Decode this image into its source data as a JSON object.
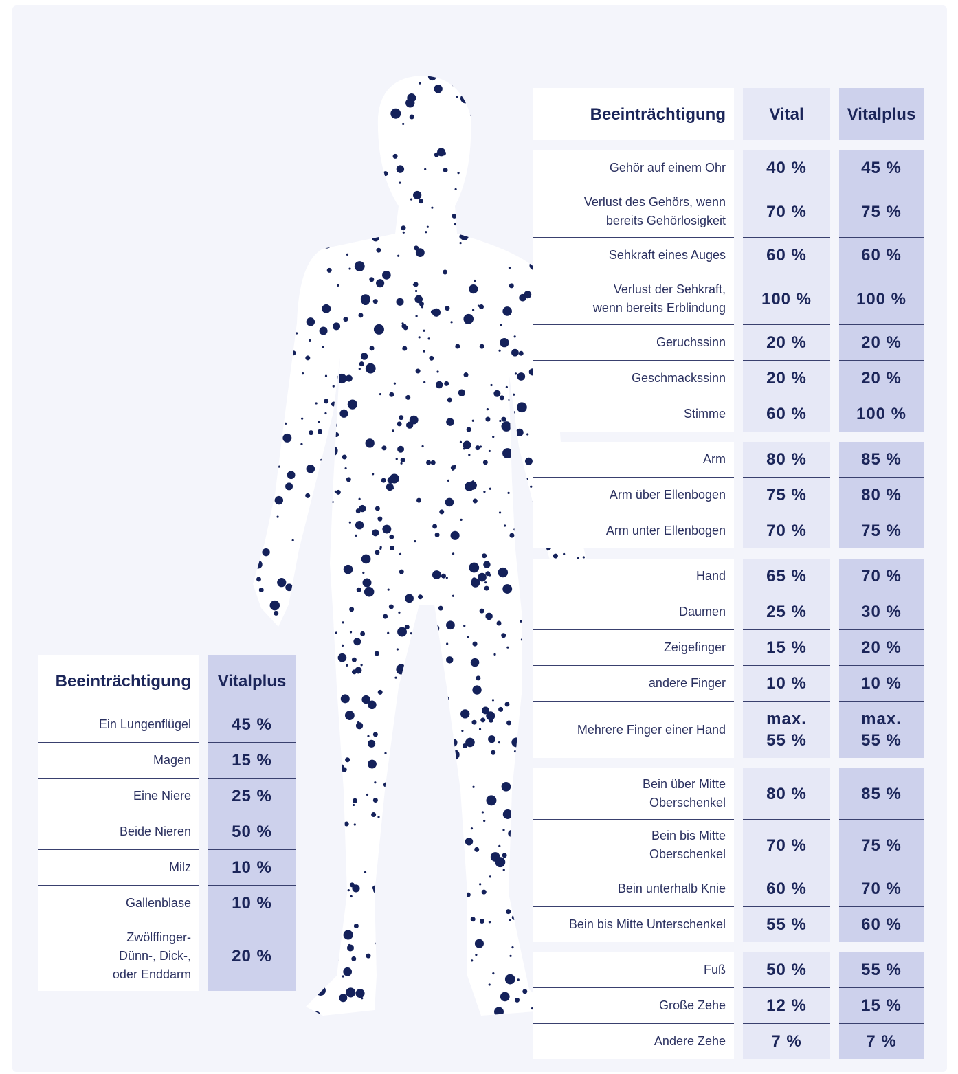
{
  "right_table": {
    "headers": [
      "Beeinträchtigung",
      "Vital",
      "Vitalplus"
    ],
    "groups": [
      [
        [
          "Gehör auf einem Ohr",
          "40 %",
          "45 %"
        ],
        [
          "Verlust des Gehörs, wenn\nbereits Gehörlosigkeit",
          "70 %",
          "75 %"
        ],
        [
          "Sehkraft eines Auges",
          "60 %",
          "60 %"
        ],
        [
          "Verlust der Sehkraft,\nwenn bereits Erblindung",
          "100 %",
          "100 %"
        ],
        [
          "Geruchssinn",
          "20 %",
          "20 %"
        ],
        [
          "Geschmackssinn",
          "20 %",
          "20 %"
        ],
        [
          "Stimme",
          "60 %",
          "100 %"
        ]
      ],
      [
        [
          "Arm",
          "80 %",
          "85 %"
        ],
        [
          "Arm über Ellenbogen",
          "75 %",
          "80 %"
        ],
        [
          "Arm unter Ellenbogen",
          "70 %",
          "75 %"
        ]
      ],
      [
        [
          "Hand",
          "65 %",
          "70 %"
        ],
        [
          "Daumen",
          "25 %",
          "30 %"
        ],
        [
          "Zeigefinger",
          "15 %",
          "20 %"
        ],
        [
          "andere Finger",
          "10 %",
          "10 %"
        ],
        [
          "Mehrere Finger einer Hand",
          "max.\n55 %",
          "max.\n55 %"
        ]
      ],
      [
        [
          "Bein über Mitte\nOberschenkel",
          "80 %",
          "85 %"
        ],
        [
          "Bein bis Mitte\nOberschenkel",
          "70 %",
          "75 %"
        ],
        [
          "Bein unterhalb Knie",
          "60 %",
          "70 %"
        ],
        [
          "Bein bis Mitte Unterschenkel",
          "55 %",
          "60 %"
        ]
      ],
      [
        [
          "Fuß",
          "50 %",
          "55 %"
        ],
        [
          "Große Zehe",
          "12 %",
          "15 %"
        ],
        [
          "Andere Zehe",
          "7 %",
          "7 %"
        ]
      ]
    ]
  },
  "left_table": {
    "headers": [
      "Beeinträchtigung",
      "Vitalplus"
    ],
    "rows": [
      [
        "Ein Lungenflügel",
        "45 %"
      ],
      [
        "Magen",
        "15 %"
      ],
      [
        "Eine Niere",
        "25 %"
      ],
      [
        "Beide Nieren",
        "50 %"
      ],
      [
        "Milz",
        "10 %"
      ],
      [
        "Gallenblase",
        "10 %"
      ],
      [
        "Zwölffinger-\nDünn-, Dick-,\noder Enddarm",
        "20 %"
      ]
    ]
  }
}
